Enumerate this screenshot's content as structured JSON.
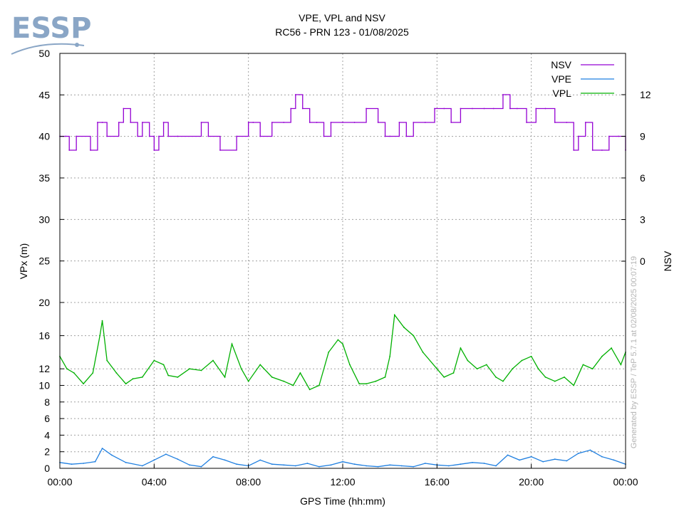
{
  "logo": {
    "text": "ESSP",
    "color": "#8aa6c6"
  },
  "chart_data": {
    "type": "line",
    "title": "VPE, VPL and NSV",
    "subtitle": "RC56 - PRN 123 - 01/08/2025",
    "xlabel": "GPS Time (hh:mm)",
    "ylabel": "VPx (m)",
    "y2label": "NSV",
    "watermark": "Generated by ESSP / TeP 5.7.1 at 02/08/2025 00:07:19",
    "x_ticks": [
      "00:00",
      "04:00",
      "08:00",
      "12:00",
      "16:00",
      "20:00",
      "00:00"
    ],
    "xlim_hours": [
      0,
      24
    ],
    "y_scale": "piecewise: 0-20 compressed-linear, 20-50 linear",
    "y_ticks": [
      0,
      2,
      4,
      6,
      8,
      10,
      12,
      16,
      20,
      25,
      30,
      35,
      40,
      45,
      50
    ],
    "ylim": [
      0,
      50
    ],
    "y2_ticks": [
      0,
      3,
      6,
      9,
      12
    ],
    "grid": true,
    "legend_position": "top-right",
    "series": [
      {
        "name": "NSV",
        "axis": "y2",
        "color": "#9400d3",
        "x_hours": [
          0,
          0.25,
          0.4,
          0.7,
          1.3,
          1.6,
          1.8,
          2.0,
          2.5,
          2.7,
          3.0,
          3.3,
          3.5,
          3.8,
          4.0,
          4.2,
          4.4,
          4.6,
          5.0,
          6.0,
          6.3,
          6.8,
          7.5,
          8.0,
          8.2,
          8.5,
          9.0,
          9.5,
          9.8,
          10.0,
          10.3,
          10.6,
          10.9,
          11.2,
          11.5,
          12.0,
          12.5,
          13.0,
          13.5,
          13.8,
          14.0,
          14.4,
          14.7,
          15.0,
          15.5,
          15.9,
          16.3,
          16.6,
          17.0,
          17.5,
          18.0,
          18.4,
          18.8,
          19.1,
          19.4,
          19.8,
          20.2,
          20.6,
          21.0,
          21.5,
          21.8,
          22.0,
          22.3,
          22.6,
          23.0,
          23.3,
          23.7,
          24.0
        ],
        "values": [
          9,
          9,
          8,
          9,
          8,
          10,
          10,
          9,
          10,
          11,
          10,
          9,
          10,
          9,
          8,
          9,
          10,
          9,
          9,
          10,
          9,
          8,
          9,
          10,
          10,
          9,
          10,
          10,
          11,
          12,
          11,
          10,
          10,
          9,
          10,
          10,
          10,
          11,
          10,
          9,
          9,
          10,
          9,
          10,
          10,
          11,
          11,
          10,
          11,
          11,
          11,
          11,
          12,
          11,
          11,
          10,
          11,
          11,
          10,
          10,
          8,
          9,
          10,
          8,
          8,
          9,
          9,
          8
        ]
      },
      {
        "name": "VPE",
        "axis": "y",
        "color": "#1f7fe0",
        "x_hours": [
          0,
          0.5,
          1.0,
          1.5,
          1.8,
          2.2,
          2.8,
          3.5,
          4.0,
          4.5,
          5.0,
          5.5,
          6.0,
          6.5,
          7.0,
          7.5,
          8.0,
          8.5,
          9.0,
          9.5,
          10.0,
          10.5,
          11.0,
          11.5,
          12.0,
          12.5,
          13.0,
          13.5,
          14.0,
          14.5,
          15.0,
          15.5,
          16.0,
          16.5,
          17.0,
          17.5,
          18.0,
          18.5,
          19.0,
          19.5,
          20.0,
          20.5,
          21.0,
          21.5,
          22.0,
          22.5,
          23.0,
          23.5,
          24.0
        ],
        "values": [
          0.7,
          0.5,
          0.6,
          0.8,
          2.4,
          1.6,
          0.7,
          0.3,
          1.0,
          1.7,
          1.1,
          0.4,
          0.2,
          1.4,
          1.0,
          0.5,
          0.3,
          1.0,
          0.5,
          0.4,
          0.3,
          0.6,
          0.2,
          0.4,
          0.8,
          0.5,
          0.3,
          0.2,
          0.4,
          0.3,
          0.2,
          0.6,
          0.4,
          0.3,
          0.5,
          0.7,
          0.6,
          0.3,
          1.6,
          1.0,
          1.4,
          0.8,
          1.1,
          0.9,
          1.8,
          2.2,
          1.4,
          1.0,
          0.5
        ]
      },
      {
        "name": "VPL",
        "axis": "y",
        "color": "#00b000",
        "x_hours": [
          0,
          0.3,
          0.6,
          1.0,
          1.4,
          1.7,
          1.8,
          2.0,
          2.4,
          2.8,
          3.1,
          3.5,
          4.0,
          4.4,
          4.6,
          5.0,
          5.5,
          6.0,
          6.5,
          7.0,
          7.3,
          7.7,
          8.0,
          8.5,
          9.0,
          9.5,
          9.9,
          10.2,
          10.6,
          11.0,
          11.4,
          11.8,
          12.0,
          12.3,
          12.7,
          13.0,
          13.4,
          13.8,
          14.0,
          14.2,
          14.6,
          15.0,
          15.4,
          16.0,
          16.3,
          16.7,
          17.0,
          17.3,
          17.7,
          18.1,
          18.5,
          18.8,
          19.2,
          19.6,
          20.0,
          20.3,
          20.6,
          21.0,
          21.4,
          21.8,
          22.2,
          22.6,
          23.0,
          23.4,
          23.8,
          24.0
        ],
        "values": [
          13.5,
          12.0,
          11.5,
          10.2,
          11.5,
          16.0,
          17.8,
          13.0,
          11.5,
          10.2,
          10.8,
          11.0,
          13.0,
          12.5,
          11.2,
          11.0,
          12.0,
          11.8,
          13.0,
          11.0,
          15.0,
          12.0,
          10.5,
          12.5,
          11.0,
          10.5,
          10.0,
          11.5,
          9.5,
          10.0,
          14.0,
          15.5,
          15.0,
          12.5,
          10.2,
          10.2,
          10.5,
          11.0,
          13.5,
          18.5,
          17.0,
          16.0,
          14.0,
          12.0,
          11.0,
          11.5,
          14.5,
          13.0,
          12.0,
          12.5,
          11.0,
          10.5,
          12.0,
          13.0,
          13.5,
          12.0,
          11.0,
          10.5,
          11.0,
          10.0,
          12.5,
          12.0,
          13.5,
          14.5,
          12.5,
          14.0
        ]
      }
    ]
  }
}
